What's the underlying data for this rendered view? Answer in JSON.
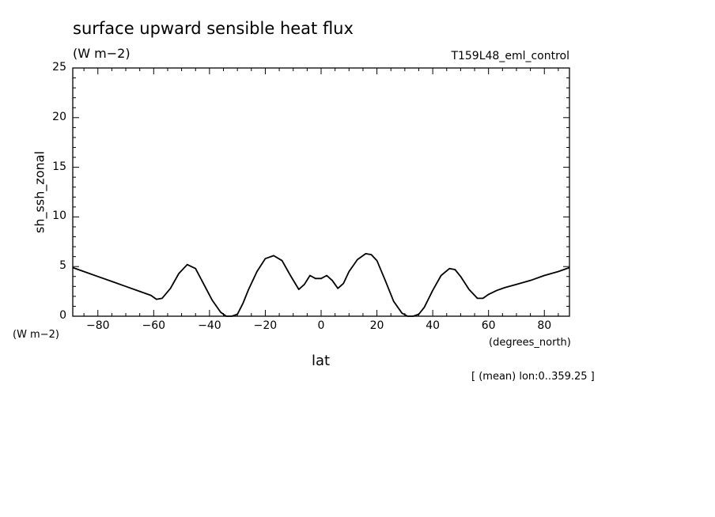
{
  "chart_data": {
    "type": "line",
    "title": "surface upward sensible heat flux",
    "subtitle": "(W m−2)",
    "run_label": "T159L48_eml_control",
    "xlabel": "lat",
    "x_units": "(degrees_north)",
    "ylabel": "sh_ssh_zonal",
    "y_units": "(W m−2)",
    "footnote": "[ (mean) lon:0..359.25 ]",
    "xlim": [
      -89,
      89
    ],
    "ylim": [
      0,
      25
    ],
    "x_ticks": [
      -80,
      -60,
      -40,
      -20,
      0,
      20,
      40,
      60,
      80
    ],
    "y_ticks": [
      0,
      5,
      10,
      15,
      20,
      25
    ],
    "x_tick_labels": [
      "−80",
      "−60",
      "−40",
      "−20",
      "0",
      "20",
      "40",
      "60",
      "80"
    ],
    "y_tick_labels": [
      "0",
      "5",
      "10",
      "15",
      "20",
      "25"
    ],
    "grid": false,
    "line_color": "#000000",
    "series": [
      {
        "x": [
          -89,
          -85,
          -80,
          -75,
          -70,
          -65,
          -61,
          -59,
          -57,
          -54,
          -51,
          -48,
          -45,
          -42,
          -39,
          -36,
          -34,
          -32,
          -30,
          -28,
          -26,
          -23,
          -20,
          -17,
          -14,
          -11,
          -8,
          -6,
          -4,
          -2,
          0,
          2,
          4,
          6,
          8,
          10,
          13,
          16,
          18,
          20,
          23,
          26,
          29,
          31,
          33,
          35,
          37,
          40,
          43,
          46,
          48,
          50,
          53,
          56,
          58,
          60,
          63,
          66,
          70,
          75,
          80,
          85,
          89
        ],
        "y": [
          4.9,
          4.5,
          4.0,
          3.5,
          3.0,
          2.5,
          2.1,
          1.7,
          1.8,
          2.8,
          4.3,
          5.2,
          4.8,
          3.2,
          1.6,
          0.4,
          0.0,
          0.0,
          0.2,
          1.3,
          2.7,
          4.5,
          5.8,
          6.1,
          5.6,
          4.1,
          2.7,
          3.2,
          4.1,
          3.8,
          3.8,
          4.1,
          3.6,
          2.8,
          3.3,
          4.5,
          5.7,
          6.3,
          6.2,
          5.6,
          3.6,
          1.5,
          0.3,
          0.0,
          0.0,
          0.2,
          0.9,
          2.6,
          4.1,
          4.8,
          4.7,
          4.0,
          2.7,
          1.8,
          1.8,
          2.2,
          2.6,
          2.9,
          3.2,
          3.6,
          4.1,
          4.5,
          4.9
        ]
      }
    ]
  }
}
